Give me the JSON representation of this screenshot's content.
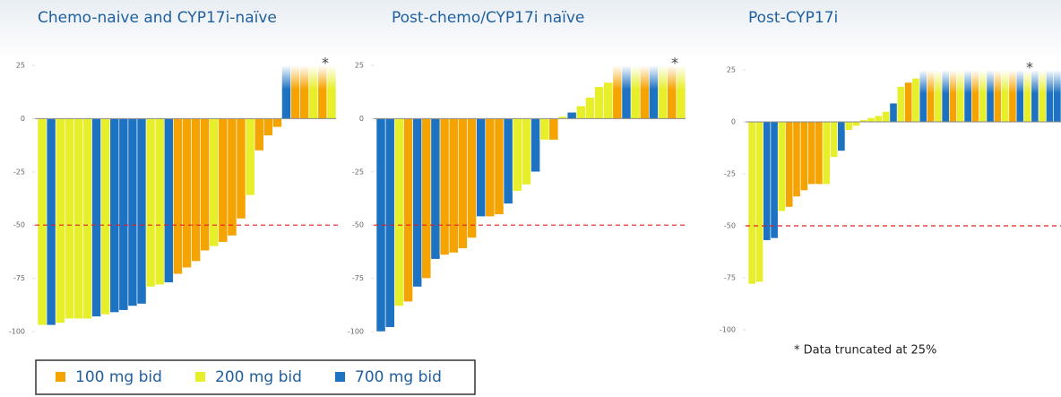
{
  "chart_data": [
    {
      "type": "waterfall",
      "title": "Chemo-naive and CYP17i-naïve",
      "ylim": [
        -100,
        25
      ],
      "yticks": [
        -100,
        -75,
        -50,
        -25,
        0,
        25
      ],
      "threshold": -50,
      "truncate_at": 25,
      "annotation": "*",
      "values": [
        -97,
        -97,
        -96,
        -94,
        -94,
        -94,
        -93,
        -92,
        -91,
        -90,
        -88,
        -87,
        -79,
        -78,
        -77,
        -73,
        -70,
        -67,
        -62,
        -60,
        -58,
        -55,
        -47,
        -36,
        -15,
        -8,
        -4,
        25,
        25,
        25,
        25,
        25,
        25
      ],
      "groups": [
        "200 mg bid",
        "700 mg bid",
        "200 mg bid",
        "200 mg bid",
        "200 mg bid",
        "200 mg bid",
        "700 mg bid",
        "200 mg bid",
        "700 mg bid",
        "700 mg bid",
        "700 mg bid",
        "700 mg bid",
        "200 mg bid",
        "200 mg bid",
        "700 mg bid",
        "100 mg bid",
        "100 mg bid",
        "100 mg bid",
        "100 mg bid",
        "200 mg bid",
        "100 mg bid",
        "100 mg bid",
        "100 mg bid",
        "200 mg bid",
        "100 mg bid",
        "100 mg bid",
        "100 mg bid",
        "700 mg bid",
        "100 mg bid",
        "100 mg bid",
        "200 mg bid",
        "100 mg bid",
        "200 mg bid"
      ]
    },
    {
      "type": "waterfall",
      "title": "Post-chemo/CYP17i naïve",
      "ylim": [
        -100,
        25
      ],
      "yticks": [
        -100,
        -75,
        -50,
        -25,
        0,
        25
      ],
      "threshold": -50,
      "truncate_at": 25,
      "annotation": "*",
      "values": [
        -100,
        -98,
        -88,
        -86,
        -79,
        -75,
        -66,
        -64,
        -63,
        -61,
        -56,
        -46,
        -46,
        -45,
        -40,
        -34,
        -31,
        -25,
        -10,
        -10,
        1,
        3,
        6,
        10,
        15,
        17,
        25,
        25,
        25,
        25,
        25,
        25,
        25,
        25
      ],
      "groups": [
        "700 mg bid",
        "700 mg bid",
        "200 mg bid",
        "100 mg bid",
        "700 mg bid",
        "100 mg bid",
        "700 mg bid",
        "100 mg bid",
        "100 mg bid",
        "100 mg bid",
        "100 mg bid",
        "700 mg bid",
        "100 mg bid",
        "100 mg bid",
        "700 mg bid",
        "200 mg bid",
        "200 mg bid",
        "700 mg bid",
        "200 mg bid",
        "100 mg bid",
        "200 mg bid",
        "700 mg bid",
        "200 mg bid",
        "200 mg bid",
        "200 mg bid",
        "200 mg bid",
        "100 mg bid",
        "700 mg bid",
        "200 mg bid",
        "100 mg bid",
        "700 mg bid",
        "200 mg bid",
        "100 mg bid",
        "200 mg bid"
      ]
    },
    {
      "type": "waterfall",
      "title": "Post-CYP17i",
      "ylim": [
        -100,
        25
      ],
      "yticks": [
        -100,
        -75,
        -50,
        -25,
        0,
        25
      ],
      "threshold": -50,
      "truncate_at": 25,
      "annotation": "*",
      "footnote": "* Data truncated at 25%",
      "values": [
        -78,
        -77,
        -57,
        -56,
        -43,
        -41,
        -36,
        -33,
        -30,
        -30,
        -30,
        -17,
        -14,
        -4,
        -2,
        1,
        2,
        3,
        5,
        9,
        17,
        19,
        21,
        25,
        25,
        25,
        25,
        25,
        25,
        25,
        25,
        25,
        25,
        25,
        25,
        25,
        25,
        25,
        25,
        25,
        25,
        25
      ],
      "groups": [
        "200 mg bid",
        "200 mg bid",
        "700 mg bid",
        "700 mg bid",
        "200 mg bid",
        "100 mg bid",
        "100 mg bid",
        "100 mg bid",
        "100 mg bid",
        "100 mg bid",
        "200 mg bid",
        "200 mg bid",
        "700 mg bid",
        "200 mg bid",
        "200 mg bid",
        "200 mg bid",
        "200 mg bid",
        "200 mg bid",
        "200 mg bid",
        "700 mg bid",
        "200 mg bid",
        "100 mg bid",
        "200 mg bid",
        "700 mg bid",
        "100 mg bid",
        "200 mg bid",
        "700 mg bid",
        "100 mg bid",
        "200 mg bid",
        "700 mg bid",
        "100 mg bid",
        "200 mg bid",
        "700 mg bid",
        "100 mg bid",
        "200 mg bid",
        "100 mg bid",
        "700 mg bid",
        "200 mg bid",
        "700 mg bid",
        "200 mg bid",
        "700 mg bid",
        "700 mg bid"
      ]
    }
  ],
  "legend": [
    {
      "name": "100 mg bid",
      "color": "#f5a300"
    },
    {
      "name": "200 mg bid",
      "color": "#e6ef2a"
    },
    {
      "name": "700 mg bid",
      "color": "#1d72c2"
    }
  ]
}
